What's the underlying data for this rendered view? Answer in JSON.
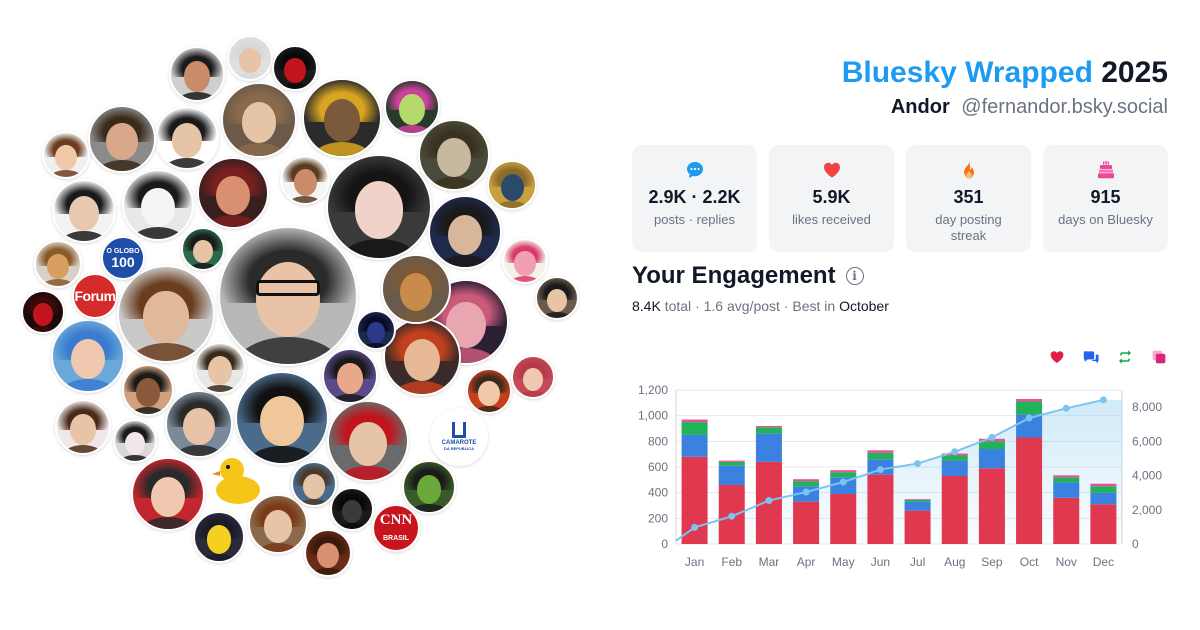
{
  "header": {
    "brand": "Bluesky Wrapped",
    "year": "2025",
    "display_name": "Andor",
    "handle": "@fernandor.bsky.social"
  },
  "stats": [
    {
      "icon": "speech-bubble-icon",
      "value": "2.9K · 2.2K",
      "label": "posts · replies",
      "color": "#1d9bf0"
    },
    {
      "icon": "heart-icon",
      "value": "5.9K",
      "label": "likes received",
      "color": "#ef4444"
    },
    {
      "icon": "flame-icon",
      "value": "351",
      "label": "day posting streak",
      "color": "#f97316"
    },
    {
      "icon": "cake-icon",
      "value": "915",
      "label": "days on Bluesky",
      "color": "#ec4899"
    }
  ],
  "engagement": {
    "title": "Your Engagement",
    "total": "8.4K",
    "total_suffix": "total",
    "avg": "1.6 avg/post",
    "best_prefix": "Best in",
    "best_month": "October"
  },
  "legend": [
    {
      "icon": "heart-icon",
      "name": "likes",
      "color": "#e11d48"
    },
    {
      "icon": "reply-icon",
      "name": "replies",
      "color": "#2563eb"
    },
    {
      "icon": "repost-icon",
      "name": "reposts",
      "color": "#16a34a"
    },
    {
      "icon": "quote-icon",
      "name": "quotes",
      "color": "#db2777"
    }
  ],
  "avatars": {
    "badges": {
      "oglobo_line1": "O GLOBO",
      "oglobo_line2": "100",
      "forum": "Forum",
      "camarote_line1": "CAMAROTE",
      "camarote_line2": "DA REPUBLICA",
      "cnn_line1": "CNN",
      "cnn_line2": "BRASIL"
    }
  },
  "chart_data": {
    "type": "bar",
    "categories": [
      "Jan",
      "Feb",
      "Mar",
      "Apr",
      "May",
      "Jun",
      "Jul",
      "Aug",
      "Sep",
      "Oct",
      "Nov",
      "Dec"
    ],
    "series": [
      {
        "name": "likes",
        "color": "#e0384f",
        "values": [
          680,
          460,
          640,
          330,
          390,
          540,
          260,
          530,
          590,
          830,
          360,
          310
        ]
      },
      {
        "name": "replies",
        "color": "#3b82e0",
        "values": [
          170,
          150,
          220,
          120,
          130,
          120,
          70,
          120,
          150,
          180,
          120,
          90
        ]
      },
      {
        "name": "reposts",
        "color": "#22b35a",
        "values": [
          100,
          30,
          50,
          40,
          40,
          50,
          15,
          40,
          60,
          100,
          40,
          50
        ]
      },
      {
        "name": "quotes",
        "color": "#ec4f9a",
        "values": [
          20,
          10,
          10,
          15,
          15,
          20,
          5,
          15,
          20,
          20,
          15,
          20
        ]
      }
    ],
    "cumulative": {
      "name": "cumulative",
      "color": "#7cc4ef",
      "values": [
        970,
        1620,
        2540,
        3040,
        3620,
        4350,
        4700,
        5390,
        6230,
        7360,
        7930,
        8420
      ]
    },
    "ylim": [
      0,
      1200
    ],
    "yticks": [
      "0",
      "200",
      "400",
      "600",
      "800",
      "1,000",
      "1,200"
    ],
    "y2lim": [
      0,
      9000
    ],
    "y2ticks": [
      "0",
      "2,000",
      "4,000",
      "6,000",
      "8,000"
    ],
    "grid": true
  }
}
